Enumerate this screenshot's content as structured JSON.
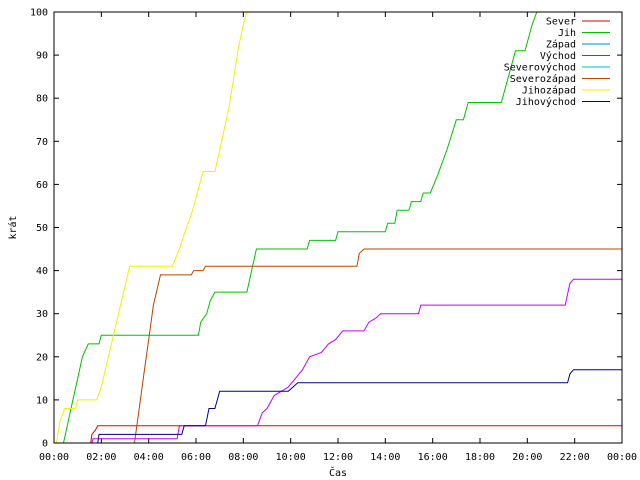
{
  "chart_data": {
    "type": "line",
    "title": "",
    "xlabel": "Čas",
    "ylabel": "krát",
    "xlim": [
      0,
      24
    ],
    "ylim": [
      0,
      100
    ],
    "x_ticks": [
      "00:00",
      "02:00",
      "04:00",
      "06:00",
      "08:00",
      "10:00",
      "12:00",
      "14:00",
      "16:00",
      "18:00",
      "20:00",
      "22:00",
      "00:00"
    ],
    "y_ticks": [
      0,
      10,
      20,
      30,
      40,
      50,
      60,
      70,
      80,
      90,
      100
    ],
    "legend_position": "top-right",
    "series": [
      {
        "name": "Sever",
        "color": "#e00000",
        "points": [
          [
            0,
            0
          ],
          [
            1.55,
            0
          ],
          [
            1.6,
            2
          ],
          [
            1.75,
            3
          ],
          [
            1.85,
            4
          ],
          [
            24,
            4
          ]
        ]
      },
      {
        "name": "Jih",
        "color": "#00c000",
        "points": [
          [
            0,
            0
          ],
          [
            0.4,
            0
          ],
          [
            0.6,
            5
          ],
          [
            0.8,
            10
          ],
          [
            1.0,
            15
          ],
          [
            1.2,
            20
          ],
          [
            1.45,
            23
          ],
          [
            1.9,
            23
          ],
          [
            2.0,
            25
          ],
          [
            6.1,
            25
          ],
          [
            6.2,
            28
          ],
          [
            6.45,
            30
          ],
          [
            6.6,
            33
          ],
          [
            6.8,
            35
          ],
          [
            8.15,
            35
          ],
          [
            8.35,
            40
          ],
          [
            8.55,
            45
          ],
          [
            10.7,
            45
          ],
          [
            10.8,
            47
          ],
          [
            11.9,
            47
          ],
          [
            12.0,
            49
          ],
          [
            14.0,
            49
          ],
          [
            14.1,
            51
          ],
          [
            14.4,
            51
          ],
          [
            14.5,
            54
          ],
          [
            15.0,
            54
          ],
          [
            15.1,
            56
          ],
          [
            15.5,
            56
          ],
          [
            15.6,
            58
          ],
          [
            15.9,
            58
          ],
          [
            16.2,
            62
          ],
          [
            16.6,
            68
          ],
          [
            17.0,
            75
          ],
          [
            17.3,
            75
          ],
          [
            17.5,
            79
          ],
          [
            18.9,
            79
          ],
          [
            19.2,
            85
          ],
          [
            19.5,
            91
          ],
          [
            19.9,
            91
          ],
          [
            20.2,
            97
          ],
          [
            20.4,
            100
          ]
        ]
      },
      {
        "name": "Západ",
        "color": "#0080ff",
        "points": []
      },
      {
        "name": "Východ",
        "color": "#c000ff",
        "points": [
          [
            0,
            0
          ],
          [
            1.6,
            0
          ],
          [
            1.65,
            1
          ],
          [
            5.2,
            1
          ],
          [
            5.3,
            4
          ],
          [
            8.6,
            4
          ],
          [
            8.8,
            7
          ],
          [
            9.0,
            8
          ],
          [
            9.3,
            11
          ],
          [
            9.6,
            12
          ],
          [
            9.9,
            13
          ],
          [
            10.2,
            15
          ],
          [
            10.5,
            17
          ],
          [
            10.8,
            20
          ],
          [
            11.3,
            21
          ],
          [
            11.6,
            23
          ],
          [
            11.9,
            24
          ],
          [
            12.2,
            26
          ],
          [
            13.1,
            26
          ],
          [
            13.3,
            28
          ],
          [
            13.6,
            29
          ],
          [
            13.8,
            30
          ],
          [
            15.4,
            30
          ],
          [
            15.5,
            32
          ],
          [
            21.6,
            32
          ],
          [
            21.8,
            37
          ],
          [
            21.95,
            38
          ],
          [
            24,
            38
          ]
        ]
      },
      {
        "name": "Severovýchod",
        "color": "#00c0c0",
        "points": []
      },
      {
        "name": "Severozápad",
        "color": "#c04000",
        "points": [
          [
            0,
            0
          ],
          [
            3.4,
            0
          ],
          [
            3.6,
            8
          ],
          [
            3.8,
            16
          ],
          [
            4.0,
            24
          ],
          [
            4.2,
            32
          ],
          [
            4.5,
            39
          ],
          [
            5.8,
            39
          ],
          [
            5.9,
            40
          ],
          [
            6.3,
            40
          ],
          [
            6.4,
            41
          ],
          [
            12.8,
            41
          ],
          [
            12.9,
            44
          ],
          [
            13.1,
            45
          ],
          [
            24,
            45
          ]
        ]
      },
      {
        "name": "Jihozápad",
        "color": "#f0f000",
        "points": [
          [
            0,
            0
          ],
          [
            0.1,
            0
          ],
          [
            0.25,
            5
          ],
          [
            0.45,
            8
          ],
          [
            0.9,
            8
          ],
          [
            1.0,
            10
          ],
          [
            1.8,
            10
          ],
          [
            2.0,
            13
          ],
          [
            2.3,
            20
          ],
          [
            2.6,
            27
          ],
          [
            2.9,
            34
          ],
          [
            3.2,
            41
          ],
          [
            5.0,
            41
          ],
          [
            5.3,
            45
          ],
          [
            5.6,
            50
          ],
          [
            5.8,
            53
          ],
          [
            6.1,
            59
          ],
          [
            6.3,
            63
          ],
          [
            6.8,
            63
          ],
          [
            7.0,
            68
          ],
          [
            7.2,
            73
          ],
          [
            7.4,
            78
          ],
          [
            7.6,
            85
          ],
          [
            7.8,
            92
          ],
          [
            8.0,
            97
          ],
          [
            8.15,
            100
          ]
        ]
      },
      {
        "name": "Jihovýchod",
        "color": "#000080",
        "points": [
          [
            0,
            0
          ],
          [
            1.85,
            0
          ],
          [
            1.9,
            2
          ],
          [
            5.4,
            2
          ],
          [
            5.5,
            4
          ],
          [
            6.4,
            4
          ],
          [
            6.55,
            8
          ],
          [
            6.8,
            8
          ],
          [
            7.0,
            12
          ],
          [
            9.9,
            12
          ],
          [
            10.1,
            13
          ],
          [
            10.3,
            14
          ],
          [
            21.7,
            14
          ],
          [
            21.8,
            16
          ],
          [
            21.95,
            17
          ],
          [
            24,
            17
          ]
        ]
      }
    ]
  }
}
